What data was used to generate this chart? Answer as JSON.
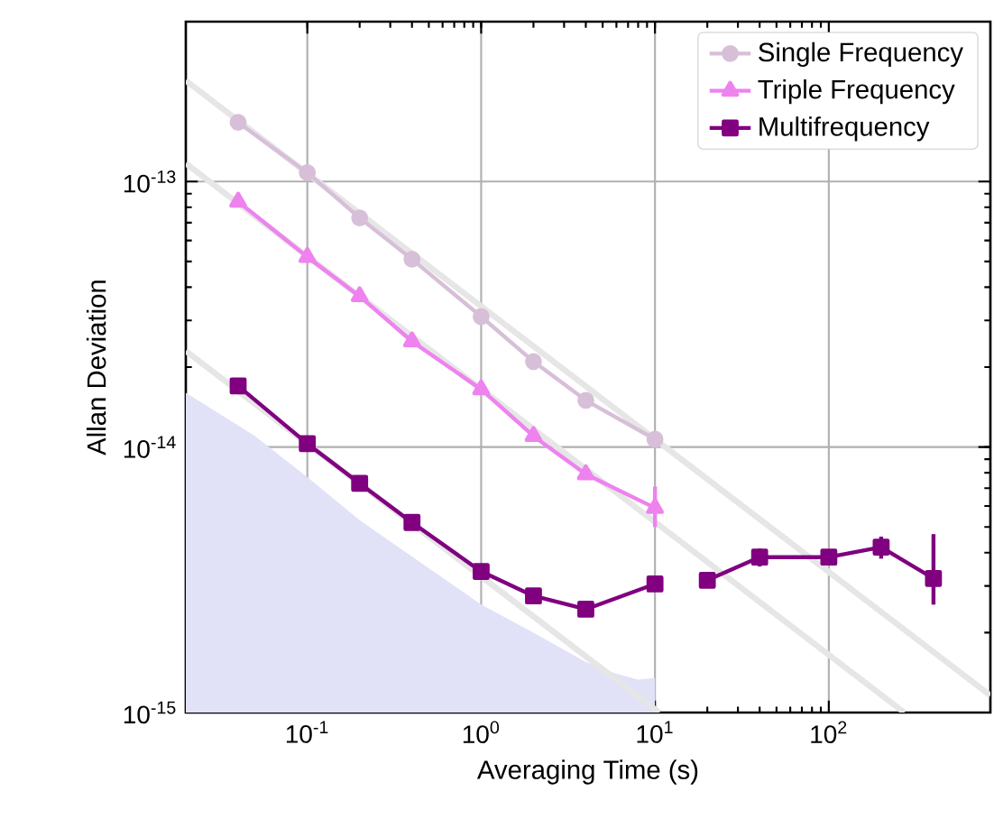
{
  "chart_data": {
    "type": "line",
    "xlabel": "Averaging Time (s)",
    "ylabel": "Allan Deviation",
    "log": "xy",
    "xlim": [
      0.02,
      850
    ],
    "ylim": [
      1e-15,
      4e-13
    ],
    "xticks": [
      {
        "value": 0.1,
        "label": "10$^{-1}$"
      },
      {
        "value": 1,
        "label": "10$^{0}$"
      },
      {
        "value": 10,
        "label": "10$^{1}$"
      },
      {
        "value": 100,
        "label": "10$^{2}$"
      }
    ],
    "yticks": [
      {
        "value": 1e-15,
        "label": "10$^{-15}$"
      },
      {
        "value": 1e-14,
        "label": "10$^{-14}$"
      },
      {
        "value": 1e-13,
        "label": "10$^{-13}$"
      }
    ],
    "grid": true,
    "legend": "top right",
    "series": [
      {
        "type": "area",
        "color": "#e1e1f7",
        "x": [
          0.02,
          0.05,
          0.1,
          0.2,
          0.5,
          1,
          2,
          4,
          6,
          8,
          10
        ],
        "values": [
          1.6e-14,
          1.1e-14,
          7.7e-15,
          5.3e-15,
          3.5e-15,
          2.55e-15,
          2e-15,
          1.55e-15,
          1.4e-15,
          1.33e-15,
          1.35e-15
        ]
      },
      {
        "type": "line",
        "color": "#e6e6e6",
        "marker": "none",
        "x": [
          0.02,
          850
        ],
        "values": [
          2.4e-13,
          1.16e-15
        ]
      },
      {
        "type": "line",
        "color": "#e6e6e6",
        "marker": "none",
        "x": [
          0.02,
          272
        ],
        "values": [
          1.17e-13,
          1e-15
        ]
      },
      {
        "type": "line",
        "color": "#e6e6e6",
        "marker": "none",
        "x": [
          0.02,
          10.6
        ],
        "values": [
          2.3e-14,
          1e-15
        ]
      },
      {
        "name": "Single Frequency",
        "color": "#d8bfd8",
        "marker": "circle",
        "x": [
          0.04,
          0.1,
          0.2,
          0.4,
          1,
          2,
          4,
          10
        ],
        "values": [
          1.67e-13,
          1.08e-13,
          7.3e-14,
          5.1e-14,
          3.1e-14,
          2.1e-14,
          1.5e-14,
          1.07e-14
        ]
      },
      {
        "name": "Triple Frequency",
        "color": "#ee82ee",
        "marker": "triangle",
        "x": [
          0.04,
          0.1,
          0.2,
          0.4,
          1,
          2,
          4,
          10
        ],
        "values": [
          8.4e-14,
          5.2e-14,
          3.7e-14,
          2.5e-14,
          1.65e-14,
          1.1e-14,
          7.9e-15,
          5.9e-15
        ],
        "errors": [
          null,
          null,
          null,
          null,
          null,
          null,
          null,
          [
            5e-15,
            7.1e-15
          ]
        ]
      },
      {
        "name": "Multifrequency",
        "color": "#800080",
        "marker": "square",
        "x": [
          0.04,
          0.1,
          0.2,
          0.4,
          1,
          2,
          4,
          10,
          null,
          20,
          40,
          100,
          200,
          400
        ],
        "values": [
          1.7e-14,
          1.03e-14,
          7.3e-15,
          5.2e-15,
          3.4e-15,
          2.75e-15,
          2.45e-15,
          3.05e-15,
          null,
          3.15e-15,
          3.85e-15,
          3.85e-15,
          4.2e-15,
          3.2e-15
        ],
        "errors": [
          null,
          null,
          null,
          null,
          null,
          null,
          null,
          null,
          null,
          null,
          3e-16,
          null,
          4e-16,
          [
            2.55e-15,
            4.7e-15
          ]
        ]
      }
    ]
  }
}
